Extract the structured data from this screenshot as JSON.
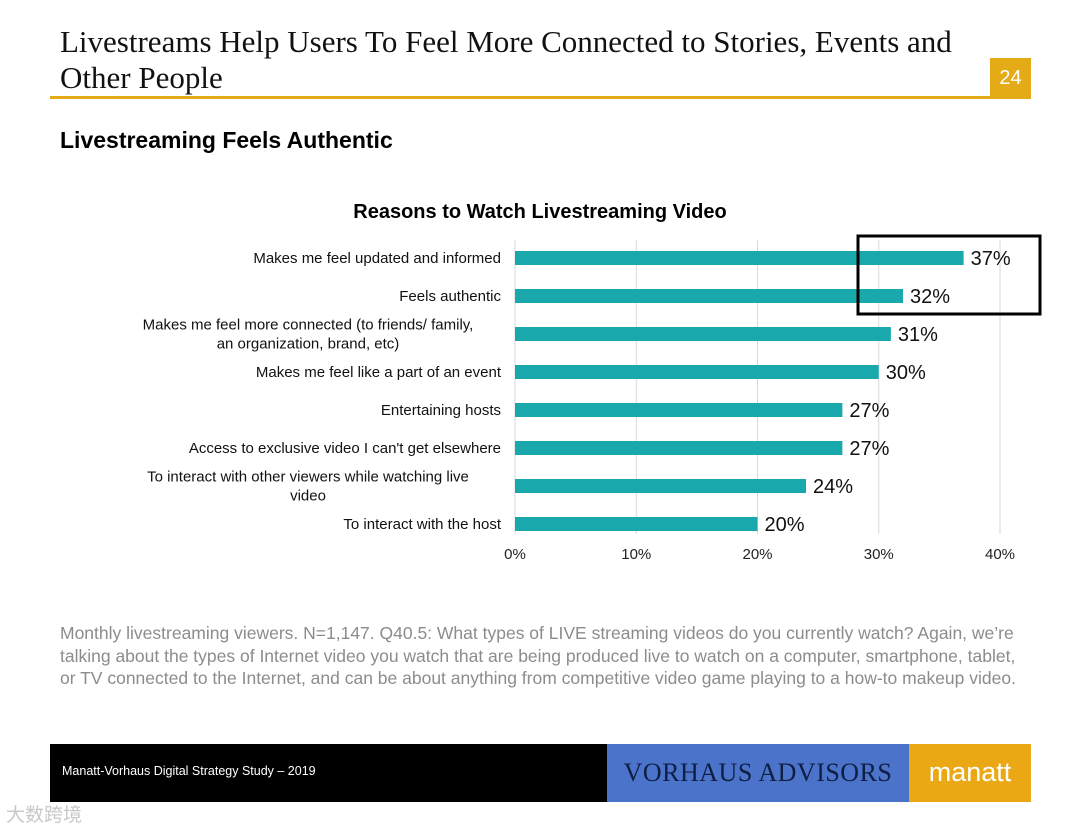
{
  "header": {
    "title": "Livestreams Help Users To Feel More Connected to Stories, Events and Other People",
    "page_number": "24",
    "subtitle": "Livestreaming Feels Authentic"
  },
  "chart_data": {
    "type": "bar",
    "orientation": "horizontal",
    "title": "Reasons to Watch Livestreaming Video",
    "categories": [
      "Makes me feel updated and informed",
      "Feels authentic",
      "Makes me feel more connected (to friends/ family, an organization, brand, etc)",
      "Makes me feel like a part of an event",
      "Entertaining hosts",
      "Access to exclusive video I can't get elsewhere",
      "To interact with other viewers while watching live video",
      "To interact with the host"
    ],
    "values": [
      37,
      32,
      31,
      30,
      27,
      27,
      24,
      20
    ],
    "value_labels": [
      "37%",
      "32%",
      "31%",
      "30%",
      "27%",
      "27%",
      "24%",
      "20%"
    ],
    "xlim": [
      0,
      40
    ],
    "xticks": [
      0,
      10,
      20,
      30,
      40
    ],
    "xtick_labels": [
      "0%",
      "10%",
      "20%",
      "30%",
      "40%"
    ],
    "grid": true,
    "highlighted_categories": [
      "Makes me feel updated and informed",
      "Feels authentic"
    ],
    "colors": {
      "bar": "#19a9ad",
      "grid": "#d9d9d9",
      "highlight_box": "#000000"
    }
  },
  "footnote": "Monthly livestreaming viewers. N=1,147. Q40.5: What types of LIVE streaming videos do you currently watch? Again, we’re talking about the types of Internet video you watch that are being produced live to watch on a computer, smartphone, tablet, or TV connected to the Internet, and can be about anything from competitive video game playing to a how-to makeup video.",
  "footer": {
    "study": "Manatt-Vorhaus Digital Strategy Study – 2019",
    "vorhaus_logo": "VORHAUS ADVISORS",
    "manatt_logo": "manatt"
  },
  "watermark": "大数跨境"
}
